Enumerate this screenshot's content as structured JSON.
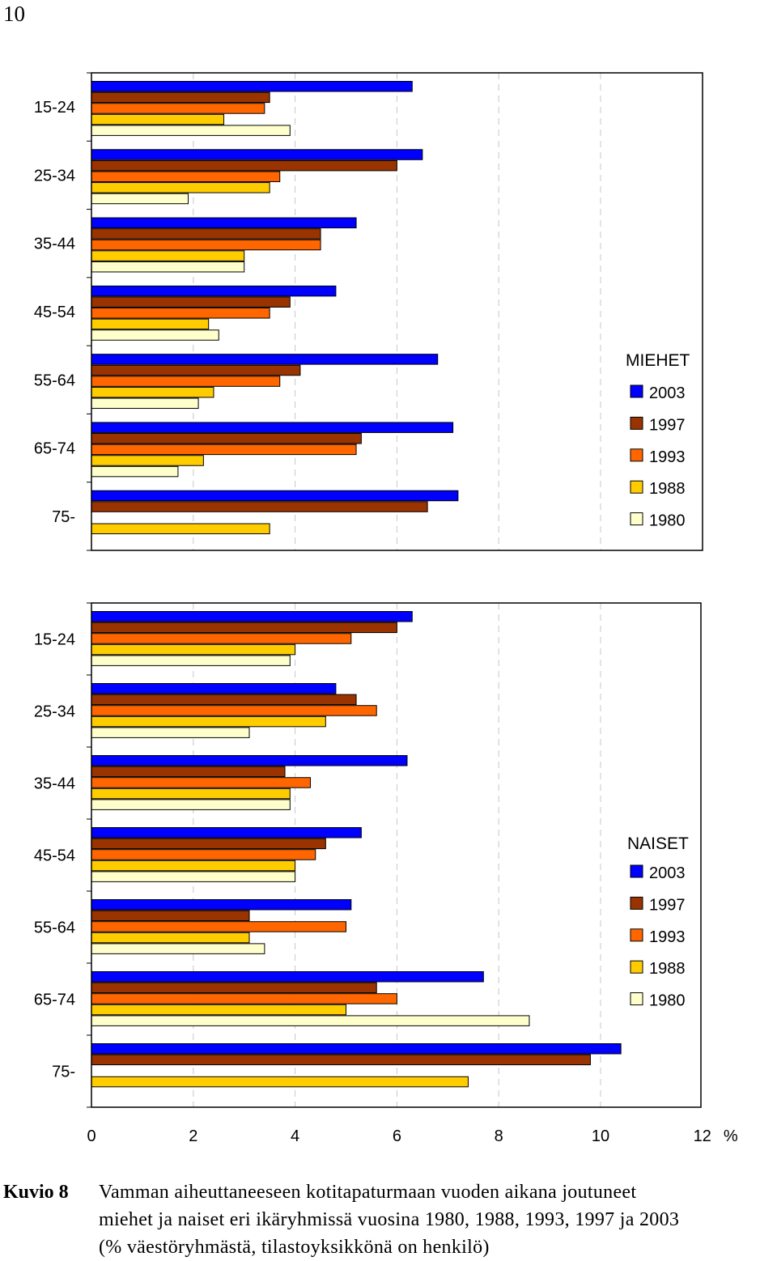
{
  "page_number": "10",
  "caption": {
    "label": "Kuvio 8",
    "lines": [
      "Vamman aiheuttaneeseen kotitapaturmaan vuoden aikana joutuneet",
      "miehet ja naiset eri ikäryhmissä vuosina 1980, 1988, 1993, 1997 ja 2003",
      "(% väestöryhmästä, tilastoyksikkönä on henkilö)"
    ]
  },
  "colors": {
    "2003": "#0000FF",
    "1997": "#993300",
    "1993": "#FF6600",
    "1988": "#FFCC00",
    "1980": "#FFFFCC"
  },
  "chart_data": [
    {
      "type": "bar",
      "orientation": "horizontal",
      "legend_title": "MIEHET",
      "legend_position": "right",
      "categories": [
        "15-24",
        "25-34",
        "35-44",
        "45-54",
        "55-64",
        "65-74",
        "75-"
      ],
      "series": [
        {
          "name": "2003",
          "values": [
            6.3,
            6.5,
            5.2,
            4.8,
            6.8,
            7.1,
            7.2
          ]
        },
        {
          "name": "1997",
          "values": [
            3.5,
            6.0,
            4.5,
            3.9,
            4.1,
            5.3,
            6.6
          ]
        },
        {
          "name": "1993",
          "values": [
            3.4,
            3.7,
            4.5,
            3.5,
            3.7,
            5.2,
            null
          ]
        },
        {
          "name": "1988",
          "values": [
            2.6,
            3.5,
            3.0,
            2.3,
            2.4,
            2.2,
            3.5
          ]
        },
        {
          "name": "1980",
          "values": [
            3.9,
            1.9,
            3.0,
            2.5,
            2.1,
            1.7,
            null
          ]
        }
      ],
      "xlim": [
        0,
        12
      ],
      "grid": "vertical dashed"
    },
    {
      "type": "bar",
      "orientation": "horizontal",
      "legend_title": "NAISET",
      "legend_position": "right",
      "categories": [
        "15-24",
        "25-34",
        "35-44",
        "45-54",
        "55-64",
        "65-74",
        "75-"
      ],
      "series": [
        {
          "name": "2003",
          "values": [
            6.3,
            4.8,
            6.2,
            5.3,
            5.1,
            7.7,
            10.4
          ]
        },
        {
          "name": "1997",
          "values": [
            6.0,
            5.2,
            3.8,
            4.6,
            3.1,
            5.6,
            9.8
          ]
        },
        {
          "name": "1993",
          "values": [
            5.1,
            5.6,
            4.3,
            4.4,
            5.0,
            6.0,
            null
          ]
        },
        {
          "name": "1988",
          "values": [
            4.0,
            4.6,
            3.9,
            4.0,
            3.1,
            5.0,
            7.4
          ]
        },
        {
          "name": "1980",
          "values": [
            3.9,
            3.1,
            3.9,
            4.0,
            3.4,
            8.6,
            null
          ]
        }
      ],
      "xlim": [
        0,
        12
      ],
      "xticks": [
        "0",
        "2",
        "4",
        "6",
        "8",
        "10",
        "12"
      ],
      "x_unit": "%",
      "grid": "vertical dashed"
    }
  ]
}
